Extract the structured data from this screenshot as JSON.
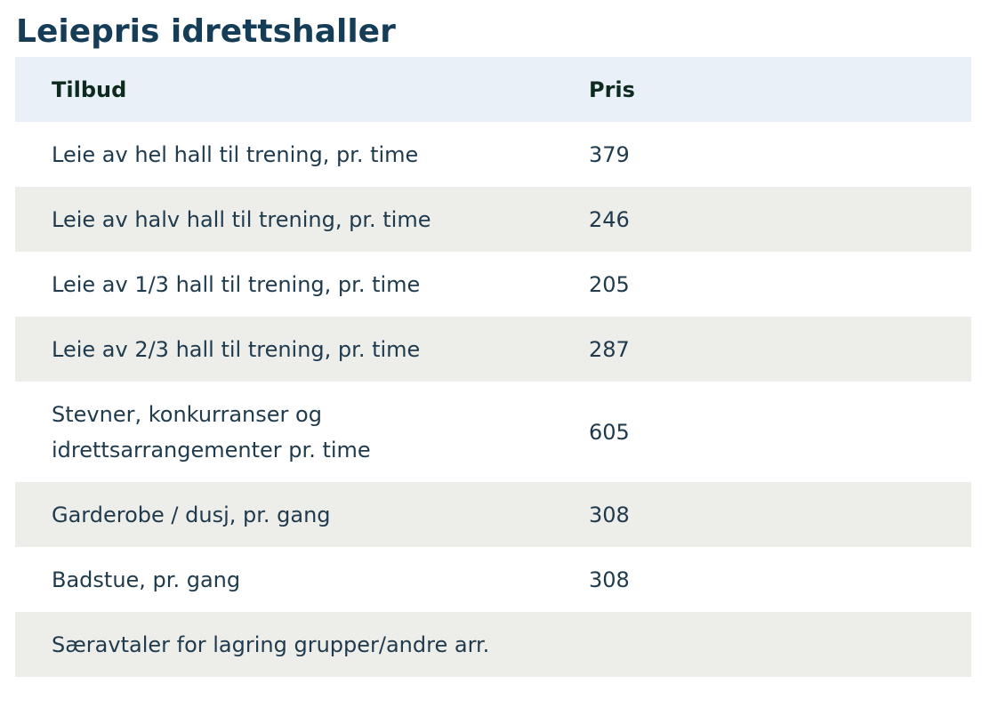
{
  "title": "Leiepris idrettshaller",
  "table": {
    "headers": [
      "Tilbud",
      "Pris"
    ],
    "rows": [
      {
        "tilbud": [
          "Leie av hel hall til trening, pr. time"
        ],
        "pris": "379"
      },
      {
        "tilbud": [
          "Leie av halv hall til trening, pr. time"
        ],
        "pris": "246"
      },
      {
        "tilbud": [
          "Leie av 1/3 hall til trening, pr. time"
        ],
        "pris": "205"
      },
      {
        "tilbud": [
          "Leie av 2/3 hall til trening, pr. time"
        ],
        "pris": "287"
      },
      {
        "tilbud": [
          "Stevner, konkurranser og",
          "idrettsarrangementer pr. time"
        ],
        "pris": "605"
      },
      {
        "tilbud": [
          "Garderobe / dusj, pr. gang"
        ],
        "pris": "308"
      },
      {
        "tilbud": [
          "Badstue, pr. gang"
        ],
        "pris": "308"
      },
      {
        "tilbud": [
          "Særavtaler for lagring grupper/andre arr."
        ],
        "pris": ""
      }
    ]
  }
}
